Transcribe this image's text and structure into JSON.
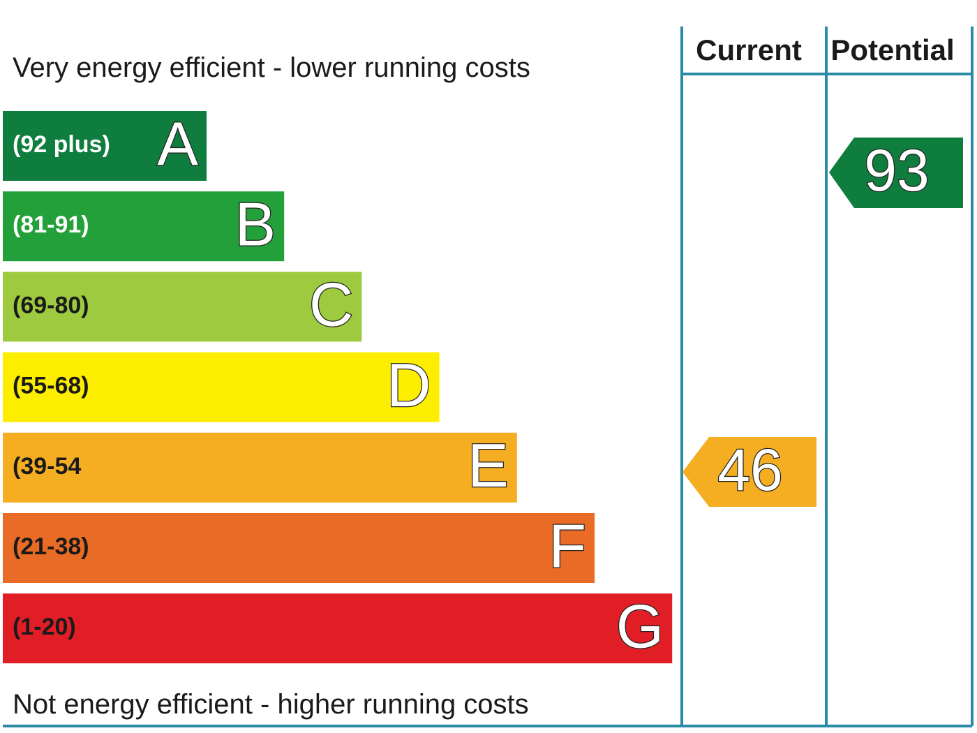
{
  "header": {
    "top_label": "Very energy efficient - lower running costs",
    "bottom_label": "Not energy efficient - higher running costs",
    "current": "Current",
    "potential": "Potential"
  },
  "bands": [
    {
      "range": "(92 plus)",
      "letter": "A",
      "color": "#0e7d3e"
    },
    {
      "range": "(81-91)",
      "letter": "B",
      "color": "#23a03a"
    },
    {
      "range": "(69-80)",
      "letter": "C",
      "color": "#9dca3e"
    },
    {
      "range": "(55-68)",
      "letter": "D",
      "color": "#fdee00"
    },
    {
      "range": "(39-54",
      "letter": "E",
      "color": "#f5ae22"
    },
    {
      "range": "(21-38)",
      "letter": "F",
      "color": "#ea6b25"
    },
    {
      "range": "(1-20)",
      "letter": "G",
      "color": "#e11d25"
    }
  ],
  "ratings": {
    "current": {
      "value": 46,
      "color": "#f5ae22"
    },
    "potential": {
      "value": 93,
      "color": "#0e7d3e"
    }
  }
}
